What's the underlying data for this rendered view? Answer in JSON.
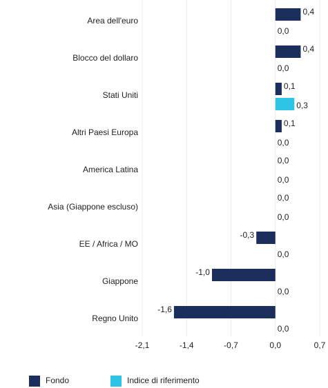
{
  "chart_data": {
    "type": "bar",
    "orientation": "horizontal",
    "categories": [
      "Area dell'euro",
      "Blocco del dollaro",
      "Stati Uniti",
      "Altri Paesi Europa",
      "America Latina",
      "Asia (Giappone escluso)",
      "EE / Africa / MO",
      "Giappone",
      "Regno Unito"
    ],
    "series": [
      {
        "name": "Fondo",
        "color": "#1c2f5c",
        "values": [
          0.4,
          0.4,
          0.1,
          0.1,
          0.0,
          0.0,
          -0.3,
          -1.0,
          -1.6
        ],
        "value_labels": [
          "0,4",
          "0,4",
          "0,1",
          "0,1",
          "0,0",
          "0,0",
          "-0,3",
          "-1,0",
          "-1,6"
        ]
      },
      {
        "name": "Indice di riferimento",
        "color": "#2ec4e6",
        "values": [
          0.0,
          0.0,
          0.3,
          0.0,
          0.0,
          0.0,
          0.0,
          0.0,
          0.0
        ],
        "value_labels": [
          "0,0",
          "0,0",
          "0,3",
          "0,0",
          "0,0",
          "0,0",
          "0,0",
          "0,0",
          "0,0"
        ]
      }
    ],
    "xlim": [
      -2.1,
      0.7
    ],
    "xticks": [
      {
        "value": -2.1,
        "label": "-2,1"
      },
      {
        "value": -1.4,
        "label": "-1,4"
      },
      {
        "value": -0.7,
        "label": "-0,7"
      },
      {
        "value": 0.0,
        "label": "0,0"
      },
      {
        "value": 0.7,
        "label": "0,7"
      }
    ],
    "grid": true
  }
}
